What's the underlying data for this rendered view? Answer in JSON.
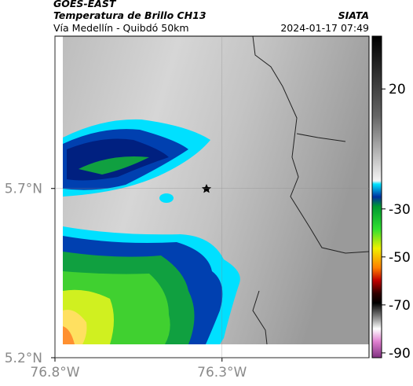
{
  "header": {
    "source": "GOES-EAST",
    "product": "Temperatura de Brillo CH13",
    "location": "Vía Medellín - Quibdó 50km",
    "agency": "SIATA",
    "datetime": "2024-01-17 07:49"
  },
  "map": {
    "xlim": [
      -76.8,
      -75.86
    ],
    "ylim": [
      5.2,
      6.15
    ],
    "xticks": [
      {
        "value": -76.8,
        "label": "76.8°W"
      },
      {
        "value": -76.3,
        "label": "76.3°W"
      }
    ],
    "yticks": [
      {
        "value": 5.7,
        "label": "5.7°N"
      },
      {
        "value": 5.2,
        "label": "5.2°N"
      }
    ]
  },
  "colorbar": {
    "lim": [
      -92,
      42
    ],
    "ticks": [
      20,
      -30,
      -50,
      -70,
      -90
    ]
  }
}
